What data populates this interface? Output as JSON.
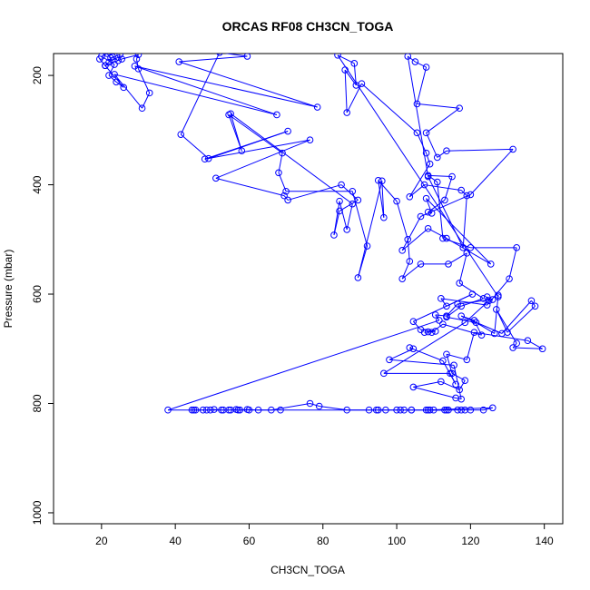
{
  "chart_data": {
    "type": "scatter",
    "title": "ORCAS RF08 CH3CN_TOGA",
    "xlabel": "CH3CN_TOGA",
    "ylabel": "Pressure (mbar)",
    "xlim": [
      7,
      145
    ],
    "ylim": [
      1020,
      160
    ],
    "y_reversed": true,
    "x_ticks": [
      20,
      40,
      60,
      80,
      100,
      120,
      140
    ],
    "y_ticks": [
      200,
      400,
      600,
      800,
      1000
    ],
    "grid": false,
    "legend": "none",
    "color": "#0000ff",
    "marker": "open-circle",
    "connected": true,
    "series": [
      {
        "values": [
          [
            19.5,
            170
          ],
          [
            21.0,
            182
          ],
          [
            22.0,
            176
          ],
          [
            23.0,
            166
          ],
          [
            24.5,
            173
          ],
          [
            25.0,
            162
          ],
          [
            22.5,
            168
          ],
          [
            21.5,
            160
          ],
          [
            20.0,
            165
          ],
          [
            23.5,
            180
          ],
          [
            22.0,
            200
          ],
          [
            24.0,
            212
          ],
          [
            26.0,
            222
          ],
          [
            21.0,
            182
          ],
          [
            25.5,
            170
          ],
          [
            30.0,
            162
          ],
          [
            29.5,
            170
          ],
          [
            30.0,
            188
          ],
          [
            33.0,
            232
          ],
          [
            31.0,
            260
          ],
          [
            23.5,
            198
          ],
          [
            67.5,
            272
          ],
          [
            29.0,
            183
          ],
          [
            78.5,
            258
          ],
          [
            41.0,
            175
          ],
          [
            59.5,
            165
          ],
          [
            52.0,
            158
          ],
          [
            41.5,
            308
          ],
          [
            49.0,
            352
          ],
          [
            70.5,
            302
          ],
          [
            48.0,
            353
          ],
          [
            76.5,
            318
          ],
          [
            51.0,
            388
          ],
          [
            69.5,
            420
          ],
          [
            70.5,
            428
          ],
          [
            85.0,
            400
          ],
          [
            89.5,
            428
          ],
          [
            84.5,
            448
          ],
          [
            83.0,
            492
          ],
          [
            84.5,
            430
          ],
          [
            86.5,
            482
          ],
          [
            88.0,
            435
          ],
          [
            55.0,
            270
          ],
          [
            58.0,
            338
          ],
          [
            54.5,
            272
          ],
          [
            69.0,
            342
          ],
          [
            68.0,
            378
          ],
          [
            70.0,
            412
          ],
          [
            88.0,
            412
          ],
          [
            92.0,
            512
          ],
          [
            89.5,
            570
          ],
          [
            96.0,
            393
          ],
          [
            96.5,
            460
          ],
          [
            95.0,
            392
          ],
          [
            100.0,
            430
          ],
          [
            103.0,
            500
          ],
          [
            103.5,
            540
          ],
          [
            101.5,
            572
          ],
          [
            106.5,
            545
          ],
          [
            114.0,
            545
          ],
          [
            119.0,
            525
          ],
          [
            117.0,
            580
          ],
          [
            123.5,
            608
          ],
          [
            117.5,
            622
          ],
          [
            113.5,
            642
          ],
          [
            121.5,
            652
          ],
          [
            126.5,
            672
          ],
          [
            127.5,
            602
          ],
          [
            127.5,
            605
          ],
          [
            84.0,
            163
          ],
          [
            88.5,
            178
          ],
          [
            89.0,
            218
          ],
          [
            86.0,
            190
          ],
          [
            86.5,
            268
          ],
          [
            90.5,
            215
          ],
          [
            105.5,
            305
          ],
          [
            108.0,
            342
          ],
          [
            109.0,
            362
          ],
          [
            103.5,
            422
          ],
          [
            107.5,
            400
          ],
          [
            117.5,
            410
          ],
          [
            119.0,
            420
          ],
          [
            118.0,
            515
          ],
          [
            108.5,
            385
          ],
          [
            103.0,
            165
          ],
          [
            105.0,
            175
          ],
          [
            108.0,
            185
          ],
          [
            105.5,
            252
          ],
          [
            117.0,
            260
          ],
          [
            108.0,
            305
          ],
          [
            111.0,
            350
          ],
          [
            113.5,
            338
          ],
          [
            131.5,
            335
          ],
          [
            120.0,
            418
          ],
          [
            106.5,
            458
          ],
          [
            101.5,
            520
          ],
          [
            108.5,
            480
          ],
          [
            113.5,
            498
          ],
          [
            125.5,
            545
          ],
          [
            108.0,
            425
          ],
          [
            109.5,
            452
          ],
          [
            108.5,
            450
          ],
          [
            113.0,
            428
          ],
          [
            115.0,
            385
          ],
          [
            108.5,
            383
          ],
          [
            111.0,
            395
          ],
          [
            112.5,
            498
          ],
          [
            120.0,
            515
          ],
          [
            132.5,
            515
          ],
          [
            130.5,
            572
          ],
          [
            124.5,
            620
          ],
          [
            112.0,
            608
          ],
          [
            113.5,
            622
          ],
          [
            120.5,
            600
          ],
          [
            104.5,
            650
          ],
          [
            106.5,
            665
          ],
          [
            110.5,
            668
          ],
          [
            107.5,
            670
          ],
          [
            108.5,
            669
          ],
          [
            109.5,
            670
          ],
          [
            112.5,
            655
          ],
          [
            123.0,
            675
          ],
          [
            121.0,
            648
          ],
          [
            117.5,
            640
          ],
          [
            128.5,
            672
          ],
          [
            136.5,
            612
          ],
          [
            137.5,
            622
          ],
          [
            130.0,
            670
          ],
          [
            127.0,
            628
          ],
          [
            132.5,
            690
          ],
          [
            131.5,
            698
          ],
          [
            139.5,
            700
          ],
          [
            135.5,
            685
          ],
          [
            121.0,
            670
          ],
          [
            119.0,
            720
          ],
          [
            113.5,
            710
          ],
          [
            115.0,
            745
          ],
          [
            118.5,
            758
          ],
          [
            117.0,
            775
          ],
          [
            112.0,
            760
          ],
          [
            104.5,
            770
          ],
          [
            116.0,
            790
          ],
          [
            117.5,
            792
          ],
          [
            115.5,
            730
          ],
          [
            98.0,
            720
          ],
          [
            104.5,
            700
          ],
          [
            103.5,
            698
          ],
          [
            112.5,
            722
          ],
          [
            116.0,
            765
          ],
          [
            114.5,
            745
          ],
          [
            96.5,
            745
          ],
          [
            118.5,
            652
          ],
          [
            125.0,
            612
          ],
          [
            124.5,
            605
          ],
          [
            126.0,
            610
          ],
          [
            116.5,
            618
          ],
          [
            113.5,
            640
          ],
          [
            110.5,
            638
          ],
          [
            111.5,
            648
          ],
          [
            38.0,
            812
          ],
          [
            45.0,
            812
          ],
          [
            45.5,
            812
          ],
          [
            48.5,
            812
          ],
          [
            49.5,
            812
          ],
          [
            50.5,
            811
          ],
          [
            52.5,
            812
          ],
          [
            53.0,
            812
          ],
          [
            54.5,
            812
          ],
          [
            56.5,
            811
          ],
          [
            57.0,
            812
          ],
          [
            57.5,
            812
          ],
          [
            59.5,
            811
          ],
          [
            62.5,
            812
          ],
          [
            66.0,
            812
          ],
          [
            76.5,
            800
          ],
          [
            79.0,
            805
          ],
          [
            86.5,
            812
          ],
          [
            92.5,
            812
          ],
          [
            95.0,
            812
          ],
          [
            97.0,
            812
          ],
          [
            100.0,
            812
          ],
          [
            101.0,
            812
          ],
          [
            102.0,
            812
          ],
          [
            104.0,
            812
          ],
          [
            108.5,
            812
          ],
          [
            109.0,
            812
          ],
          [
            113.5,
            812
          ],
          [
            114.0,
            812
          ],
          [
            116.5,
            812
          ],
          [
            117.5,
            812
          ],
          [
            118.5,
            812
          ],
          [
            120.0,
            812
          ],
          [
            123.5,
            812
          ],
          [
            126.0,
            808
          ],
          [
            108.0,
            812
          ],
          [
            113.0,
            812
          ],
          [
            110.0,
            812
          ],
          [
            104.0,
            812
          ],
          [
            94.5,
            812
          ],
          [
            68.5,
            812
          ],
          [
            60.0,
            812
          ],
          [
            55.0,
            812
          ],
          [
            47.5,
            812
          ],
          [
            44.5,
            812
          ]
        ]
      }
    ]
  }
}
